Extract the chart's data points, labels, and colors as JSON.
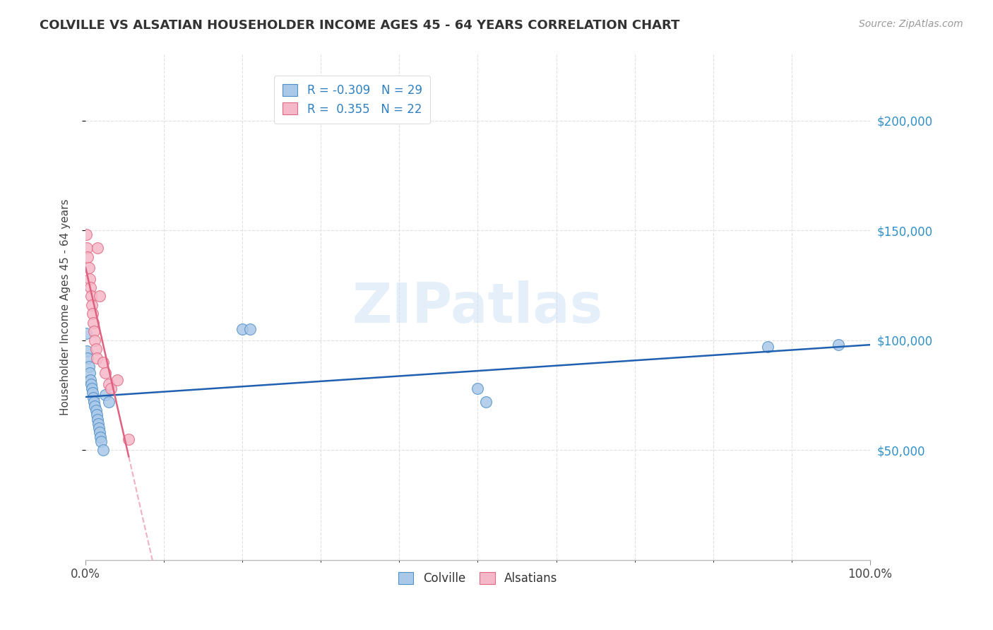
{
  "title": "COLVILLE VS ALSATIAN HOUSEHOLDER INCOME AGES 45 - 64 YEARS CORRELATION CHART",
  "source": "Source: ZipAtlas.com",
  "ylabel": "Householder Income Ages 45 - 64 years",
  "watermark": "ZIPatlas",
  "colville_x": [
    0.001,
    0.002,
    0.003,
    0.004,
    0.005,
    0.006,
    0.007,
    0.008,
    0.009,
    0.01,
    0.011,
    0.012,
    0.013,
    0.014,
    0.015,
    0.016,
    0.017,
    0.018,
    0.019,
    0.02,
    0.022,
    0.025,
    0.03,
    0.2,
    0.21,
    0.5,
    0.51,
    0.87,
    0.96
  ],
  "colville_y": [
    103000,
    95000,
    92000,
    88000,
    85000,
    82000,
    80000,
    78000,
    76000,
    74000,
    72000,
    70000,
    68000,
    66000,
    64000,
    62000,
    60000,
    58000,
    56000,
    54000,
    50000,
    75000,
    72000,
    105000,
    105000,
    78000,
    72000,
    97000,
    98000
  ],
  "alsatian_x": [
    0.001,
    0.002,
    0.003,
    0.004,
    0.005,
    0.006,
    0.007,
    0.008,
    0.009,
    0.01,
    0.011,
    0.012,
    0.013,
    0.014,
    0.015,
    0.018,
    0.022,
    0.025,
    0.03,
    0.032,
    0.04,
    0.055
  ],
  "alsatian_y": [
    148000,
    142000,
    138000,
    133000,
    128000,
    124000,
    120000,
    116000,
    112000,
    108000,
    104000,
    100000,
    96000,
    92000,
    142000,
    120000,
    90000,
    85000,
    80000,
    78000,
    82000,
    55000
  ],
  "colville_color": "#aac8e8",
  "alsatian_color": "#f5b8c8",
  "colville_edge_color": "#5090c8",
  "alsatian_edge_color": "#e06880",
  "colville_line_color": "#2060b0",
  "alsatian_line_color": "#e06080",
  "alsatian_dash_color": "#f0b0c0",
  "R_colville": -0.309,
  "N_colville": 29,
  "R_alsatian": 0.355,
  "N_alsatian": 22,
  "xlim": [
    0.0,
    1.0
  ],
  "ylim": [
    0,
    230000
  ],
  "yticks": [
    50000,
    100000,
    150000,
    200000
  ],
  "grid_color": "#e0e0e0",
  "bg_color": "#ffffff",
  "right_tick_color": "#3090c8"
}
